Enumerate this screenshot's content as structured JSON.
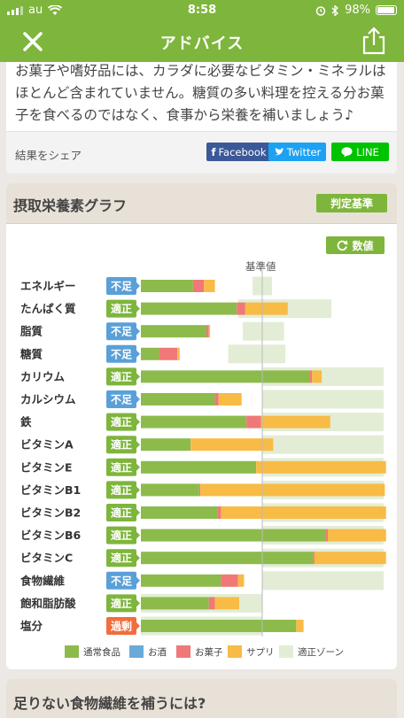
{
  "status": {
    "carrier": "au",
    "time": "8:58",
    "battery": "98%"
  },
  "nav": {
    "title": "アドバイス"
  },
  "advice": {
    "text": "お菓子や嗜好品には、カラダに必要なビタミン・ミネラルはほとんど含まれていません。糖質の多い料理を控える分お菓子を食べるのではなく、食事から栄養を補いましょう♪"
  },
  "share": {
    "label": "結果をシェア",
    "facebook": "Facebook",
    "twitter": "Twitter",
    "line": "LINE"
  },
  "graph": {
    "title": "摂取栄養素グラフ",
    "criteria_button": "判定基準",
    "numeric_button": "数値",
    "baseline_label": "基準値"
  },
  "colors": {
    "normal": "#8cbb4c",
    "alcohol": "#6aa9d8",
    "snack": "#f07878",
    "supplement": "#f8bb45",
    "zone": "#e3edd5",
    "excess": "#f26d3d",
    "ok": "#7eb53c",
    "short": "#5aa0d8"
  },
  "chart_data": {
    "type": "bar",
    "orientation": "horizontal",
    "stacked": true,
    "note_units": "percent of standard value (基準値 = 100)",
    "categories": [
      "エネルギー",
      "たんぱく質",
      "脂質",
      "糖質",
      "カリウム",
      "カルシウム",
      "鉄",
      "ビタミンA",
      "ビタミンE",
      "ビタミンB1",
      "ビタミンB2",
      "ビタミンB6",
      "ビタミンC",
      "食物繊維",
      "飽和脂肪酸",
      "塩分"
    ],
    "status": [
      "不足",
      "適正",
      "不足",
      "不足",
      "適正",
      "不足",
      "適正",
      "適正",
      "適正",
      "適正",
      "適正",
      "適正",
      "適正",
      "不足",
      "適正",
      "過剰"
    ],
    "series": [
      {
        "name": "通常食品",
        "values": [
          43,
          79,
          54,
          15,
          139,
          61,
          87,
          41,
          95,
          48,
          63,
          152,
          142,
          66,
          56,
          128
        ]
      },
      {
        "name": "お酒",
        "values": [
          0,
          0,
          0,
          0,
          0,
          0,
          0,
          0,
          0,
          0,
          0,
          0,
          0,
          0,
          0,
          0
        ]
      },
      {
        "name": "お菓子",
        "values": [
          9,
          7,
          2,
          15,
          2,
          3,
          12,
          0,
          0,
          1,
          3,
          2,
          1,
          14,
          5,
          0
        ]
      },
      {
        "name": "サプリ",
        "values": [
          9,
          35,
          1,
          2,
          8,
          19,
          57,
          68,
          107,
          152,
          136,
          48,
          59,
          5,
          20,
          6
        ]
      }
    ],
    "zones": [
      [
        92,
        108
      ],
      [
        80,
        157
      ],
      [
        84,
        118
      ],
      [
        72,
        119
      ],
      [
        100,
        200
      ],
      [
        100,
        200
      ],
      [
        100,
        200
      ],
      [
        100,
        200
      ],
      [
        100,
        200
      ],
      [
        100,
        200
      ],
      [
        100,
        200
      ],
      [
        100,
        200
      ],
      [
        100,
        200
      ],
      [
        100,
        200
      ],
      [
        0,
        100
      ],
      [
        0,
        100
      ]
    ],
    "xlim": [
      0,
      200
    ],
    "baseline": 100,
    "legend": [
      "通常食品",
      "お酒",
      "お菓子",
      "サプリ",
      "適正ゾーン"
    ]
  },
  "next": {
    "title": "足りない食物繊維を補うには?"
  }
}
